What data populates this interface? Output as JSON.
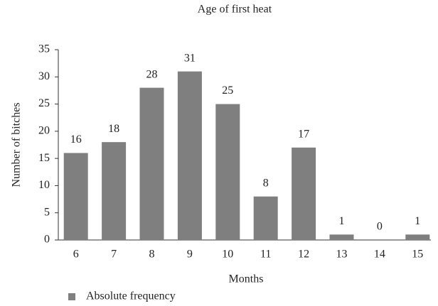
{
  "chart_data": {
    "type": "bar",
    "title": "Age of first heat",
    "x_label": "Months",
    "y_label": "Number of bitches",
    "categories": [
      "6",
      "7",
      "8",
      "9",
      "10",
      "11",
      "12",
      "13",
      "14",
      "15"
    ],
    "series": [
      {
        "name": "Absolute frequency",
        "color": "#7f7f7f",
        "values": [
          16,
          18,
          28,
          31,
          25,
          8,
          17,
          1,
          0,
          1
        ]
      }
    ],
    "ylim": [
      0,
      35
    ],
    "yticks": [
      0,
      5,
      10,
      15,
      20,
      25,
      30,
      35
    ],
    "grid": false,
    "legend": "bottom-left"
  }
}
